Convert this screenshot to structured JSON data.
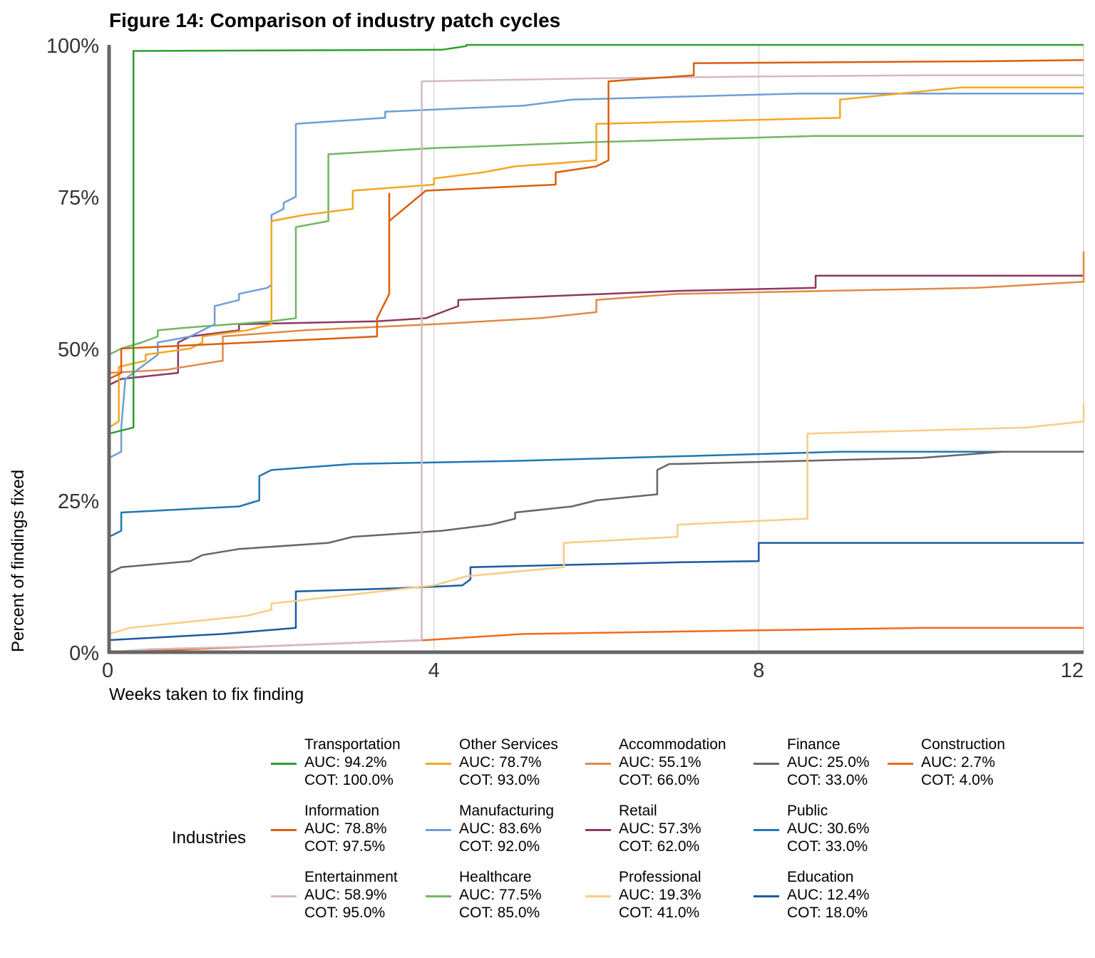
{
  "chart_data": {
    "type": "line",
    "title": "Figure 14: Comparison of industry patch cycles",
    "xlabel": "Weeks taken to fix finding",
    "ylabel": "Percent of findings fixed",
    "xlim": [
      0,
      12
    ],
    "ylim": [
      0,
      100
    ],
    "xticks": [
      "0",
      "4",
      "8",
      "12"
    ],
    "yticks": [
      "0%",
      "25%",
      "50%",
      "75%",
      "100%"
    ],
    "grid": "vertical",
    "legend": {
      "title": "Industries",
      "placement": "bottom"
    },
    "series": [
      {
        "name": "Transportation",
        "auc": "AUC: 94.2%",
        "cot": "COT: 100.0%",
        "color": "#2ca02c",
        "points": [
          [
            0,
            36
          ],
          [
            0.3,
            37
          ],
          [
            0.3,
            99
          ],
          [
            4.1,
            99.2
          ],
          [
            4.4,
            99.8
          ],
          [
            4.4,
            100
          ],
          [
            12,
            100
          ]
        ]
      },
      {
        "name": "Information",
        "auc": "AUC: 78.8%",
        "cot": "COT: 97.5%",
        "color": "#d95f0e",
        "points": [
          [
            0,
            45
          ],
          [
            0.15,
            46
          ],
          [
            0.15,
            50
          ],
          [
            3.3,
            52
          ],
          [
            3.3,
            55
          ],
          [
            3.45,
            59
          ],
          [
            3.45,
            75.5
          ],
          [
            3.45,
            71
          ],
          [
            3.9,
            76
          ],
          [
            5.5,
            77
          ],
          [
            5.5,
            79
          ],
          [
            6,
            80
          ],
          [
            6.15,
            81
          ],
          [
            6.15,
            94
          ],
          [
            7.2,
            95
          ],
          [
            7.2,
            97
          ],
          [
            10.7,
            97.3
          ],
          [
            12,
            97.5
          ]
        ]
      },
      {
        "name": "Entertainment",
        "auc": "AUC: 58.9%",
        "cot": "COT: 95.0%",
        "color": "#d4b9c4",
        "points": [
          [
            0,
            0
          ],
          [
            0.5,
            0.5
          ],
          [
            2,
            1
          ],
          [
            3.85,
            2
          ],
          [
            3.85,
            94
          ],
          [
            6,
            94.5
          ],
          [
            8,
            94.8
          ],
          [
            10,
            95
          ],
          [
            12,
            95
          ]
        ]
      },
      {
        "name": "Other Services",
        "auc": "AUC: 78.7%",
        "cot": "COT: 93.0%",
        "color": "#f5a623",
        "points": [
          [
            0,
            37
          ],
          [
            0.12,
            38
          ],
          [
            0.12,
            47
          ],
          [
            0.45,
            48
          ],
          [
            0.45,
            49
          ],
          [
            1,
            50
          ],
          [
            1.15,
            51
          ],
          [
            1.15,
            52
          ],
          [
            1.7,
            53
          ],
          [
            2,
            54
          ],
          [
            2,
            71
          ],
          [
            2.4,
            72
          ],
          [
            3,
            73
          ],
          [
            3,
            76
          ],
          [
            4,
            77
          ],
          [
            4,
            78
          ],
          [
            4.6,
            79
          ],
          [
            5,
            80
          ],
          [
            6,
            81
          ],
          [
            6,
            87
          ],
          [
            9,
            88
          ],
          [
            9,
            91
          ],
          [
            10.5,
            93
          ],
          [
            12,
            93
          ]
        ]
      },
      {
        "name": "Manufacturing",
        "auc": "AUC: 83.6%",
        "cot": "COT: 92.0%",
        "color": "#6e9fd4",
        "points": [
          [
            0,
            32
          ],
          [
            0.15,
            33
          ],
          [
            0.15,
            37
          ],
          [
            0.2,
            45
          ],
          [
            0.5,
            48
          ],
          [
            0.6,
            49
          ],
          [
            0.6,
            51
          ],
          [
            1,
            52
          ],
          [
            1.3,
            54
          ],
          [
            1.3,
            57
          ],
          [
            1.6,
            58
          ],
          [
            1.6,
            59
          ],
          [
            1.95,
            60
          ],
          [
            2,
            60.5
          ],
          [
            2,
            72
          ],
          [
            2.15,
            73
          ],
          [
            2.15,
            74
          ],
          [
            2.3,
            75
          ],
          [
            2.3,
            87
          ],
          [
            3.4,
            88
          ],
          [
            3.4,
            89
          ],
          [
            5.1,
            90
          ],
          [
            5.7,
            91
          ],
          [
            8.5,
            92
          ],
          [
            12,
            92
          ]
        ]
      },
      {
        "name": "Healthcare",
        "auc": "AUC: 77.5%",
        "cot": "COT: 85.0%",
        "color": "#74b566",
        "points": [
          [
            0,
            49
          ],
          [
            0.15,
            50
          ],
          [
            0.4,
            51
          ],
          [
            0.6,
            52
          ],
          [
            0.6,
            53
          ],
          [
            1,
            53.5
          ],
          [
            2,
            54.5
          ],
          [
            2.3,
            55
          ],
          [
            2.3,
            70
          ],
          [
            2.7,
            71
          ],
          [
            2.7,
            82
          ],
          [
            4,
            83
          ],
          [
            6,
            84
          ],
          [
            8.7,
            85
          ],
          [
            12,
            85
          ]
        ]
      },
      {
        "name": "Accommodation",
        "auc": "AUC: 55.1%",
        "cot": "COT: 66.0%",
        "color": "#e08a46",
        "points": [
          [
            0,
            46
          ],
          [
            0.7,
            46.5
          ],
          [
            1.4,
            48
          ],
          [
            1.4,
            52
          ],
          [
            2.4,
            53
          ],
          [
            4,
            54
          ],
          [
            5.3,
            55
          ],
          [
            6,
            56
          ],
          [
            6,
            58
          ],
          [
            7,
            59
          ],
          [
            10.7,
            60
          ],
          [
            12,
            61
          ],
          [
            12,
            66
          ],
          [
            12.3,
            66
          ]
        ]
      },
      {
        "name": "Retail",
        "auc": "AUC: 57.3%",
        "cot": "COT: 62.0%",
        "color": "#8b3a62",
        "points": [
          [
            0,
            44
          ],
          [
            0.15,
            45
          ],
          [
            0.85,
            46
          ],
          [
            0.85,
            51
          ],
          [
            1,
            52
          ],
          [
            1.6,
            53
          ],
          [
            1.6,
            54
          ],
          [
            3.3,
            54.5
          ],
          [
            3.9,
            55
          ],
          [
            4.3,
            57
          ],
          [
            4.3,
            58
          ],
          [
            7,
            59.5
          ],
          [
            8.7,
            60
          ],
          [
            8.7,
            62
          ],
          [
            12,
            62
          ]
        ]
      },
      {
        "name": "Professional",
        "auc": "AUC: 19.3%",
        "cot": "COT: 41.0%",
        "color": "#f9cd84",
        "points": [
          [
            0,
            3
          ],
          [
            0.25,
            4
          ],
          [
            1.7,
            6
          ],
          [
            2,
            7
          ],
          [
            2,
            8
          ],
          [
            4,
            11
          ],
          [
            4.4,
            12.5
          ],
          [
            5.6,
            14
          ],
          [
            5.6,
            18
          ],
          [
            7,
            19
          ],
          [
            7,
            21
          ],
          [
            8.6,
            22
          ],
          [
            8.6,
            36
          ],
          [
            11.3,
            37
          ],
          [
            12,
            38
          ],
          [
            12,
            41
          ]
        ]
      },
      {
        "name": "Finance",
        "auc": "AUC: 25.0%",
        "cot": "COT: 33.0%",
        "color": "#666666",
        "points": [
          [
            0,
            13
          ],
          [
            0.15,
            14
          ],
          [
            1,
            15
          ],
          [
            1.15,
            16
          ],
          [
            1.6,
            17
          ],
          [
            2.7,
            18
          ],
          [
            3,
            19
          ],
          [
            4.1,
            20
          ],
          [
            4.7,
            21
          ],
          [
            5,
            22
          ],
          [
            5,
            23
          ],
          [
            5.7,
            24
          ],
          [
            6,
            25
          ],
          [
            6.75,
            26
          ],
          [
            6.75,
            30
          ],
          [
            6.9,
            31
          ],
          [
            7,
            31
          ],
          [
            10,
            32
          ],
          [
            11,
            33
          ],
          [
            12,
            33
          ]
        ]
      },
      {
        "name": "Public",
        "auc": "AUC: 30.6%",
        "cot": "COT: 33.0%",
        "color": "#1f78b4",
        "points": [
          [
            0,
            19
          ],
          [
            0.15,
            20
          ],
          [
            0.15,
            23
          ],
          [
            1.6,
            24
          ],
          [
            1.85,
            25
          ],
          [
            1.85,
            29
          ],
          [
            2,
            30
          ],
          [
            3,
            31
          ],
          [
            5,
            31.5
          ],
          [
            9,
            33
          ],
          [
            12,
            33
          ]
        ]
      },
      {
        "name": "Education",
        "auc": "AUC: 12.4%",
        "cot": "COT: 18.0%",
        "color": "#1c5aa0",
        "points": [
          [
            0,
            2
          ],
          [
            1.4,
            3
          ],
          [
            2.3,
            4
          ],
          [
            2.3,
            10
          ],
          [
            3.5,
            10.5
          ],
          [
            4.35,
            11
          ],
          [
            4.45,
            12
          ],
          [
            4.45,
            14
          ],
          [
            7,
            14.8
          ],
          [
            8,
            15
          ],
          [
            8,
            18
          ],
          [
            12,
            18
          ]
        ]
      },
      {
        "name": "Construction",
        "auc": "AUC: 2.7%",
        "cot": "COT: 4.0%",
        "color": "#f26a1b",
        "points": [
          [
            0,
            0
          ],
          [
            1,
            0.5
          ],
          [
            3.9,
            2
          ],
          [
            5.1,
            3
          ],
          [
            8,
            3.6
          ],
          [
            10,
            4
          ],
          [
            12,
            4
          ]
        ]
      }
    ],
    "legend_order": [
      [
        "Transportation",
        "Information",
        "Entertainment"
      ],
      [
        "Other Services",
        "Manufacturing",
        "Healthcare"
      ],
      [
        "Accommodation",
        "Retail",
        "Professional"
      ],
      [
        "Finance",
        "Public",
        "Education"
      ],
      [
        "Construction"
      ]
    ]
  }
}
